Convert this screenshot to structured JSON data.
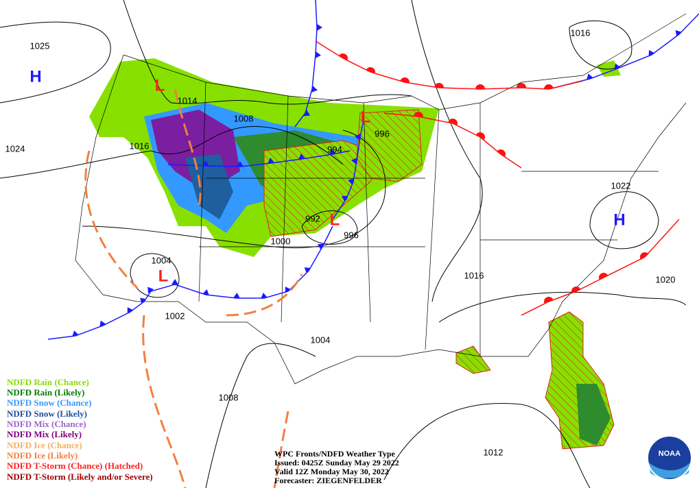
{
  "pressure_labels": [
    1025,
    1024,
    1016,
    1014,
    1008,
    994,
    996,
    992,
    996,
    1000,
    1004,
    1002,
    1004,
    1008,
    1012,
    1016,
    1022,
    1020,
    1016
  ],
  "highs": [
    "H",
    "H"
  ],
  "lows": [
    "L",
    "L",
    "L",
    "L"
  ],
  "legend": [
    "NDFD Rain (Chance)",
    "NDFD Rain (Likely)",
    "NDFD Snow (Chance)",
    "NDFD Snow (Likely)",
    "NDFD Mix (Chance)",
    "NDFD Mix (Likely)",
    "NDFD Ice (Chance)",
    "NDFD Ice (Likely)",
    "NDFD T-Storm (Chance) (Hatched)",
    "NDFD T-Storm (Likely and/or Severe)"
  ],
  "caption": [
    "WPC Fronts/NDFD Weather Type",
    "Issued: 0425Z Sunday May 29 2022",
    "Valid 12Z Monday May 30, 2022",
    "Forecaster: ZIEGENFELDER"
  ],
  "logo": "NOAA"
}
